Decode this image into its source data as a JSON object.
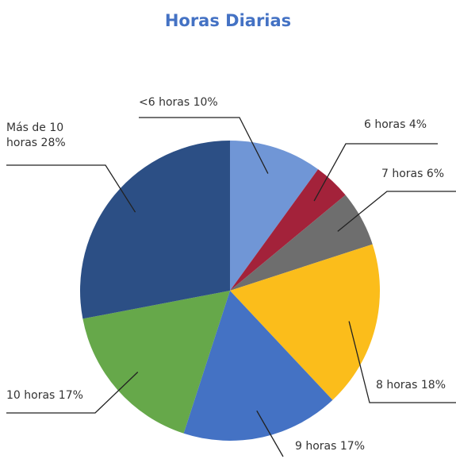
{
  "chart_data": {
    "type": "pie",
    "title": "Horas Diarias",
    "categories": [
      "<6 horas",
      "6 horas",
      "7 horas",
      "8 horas",
      "9 horas",
      "10 horas",
      "Más de 10 horas"
    ],
    "values": [
      10,
      4,
      6,
      18,
      17,
      17,
      28
    ],
    "value_labels": [
      "10%",
      "4%",
      "6%",
      "18%",
      "17%",
      "17%",
      "28%"
    ],
    "colors": [
      "#7096d6",
      "#a3223a",
      "#6e6e6e",
      "#fbbd1b",
      "#4472c4",
      "#66a84a",
      "#2c4f85"
    ]
  }
}
